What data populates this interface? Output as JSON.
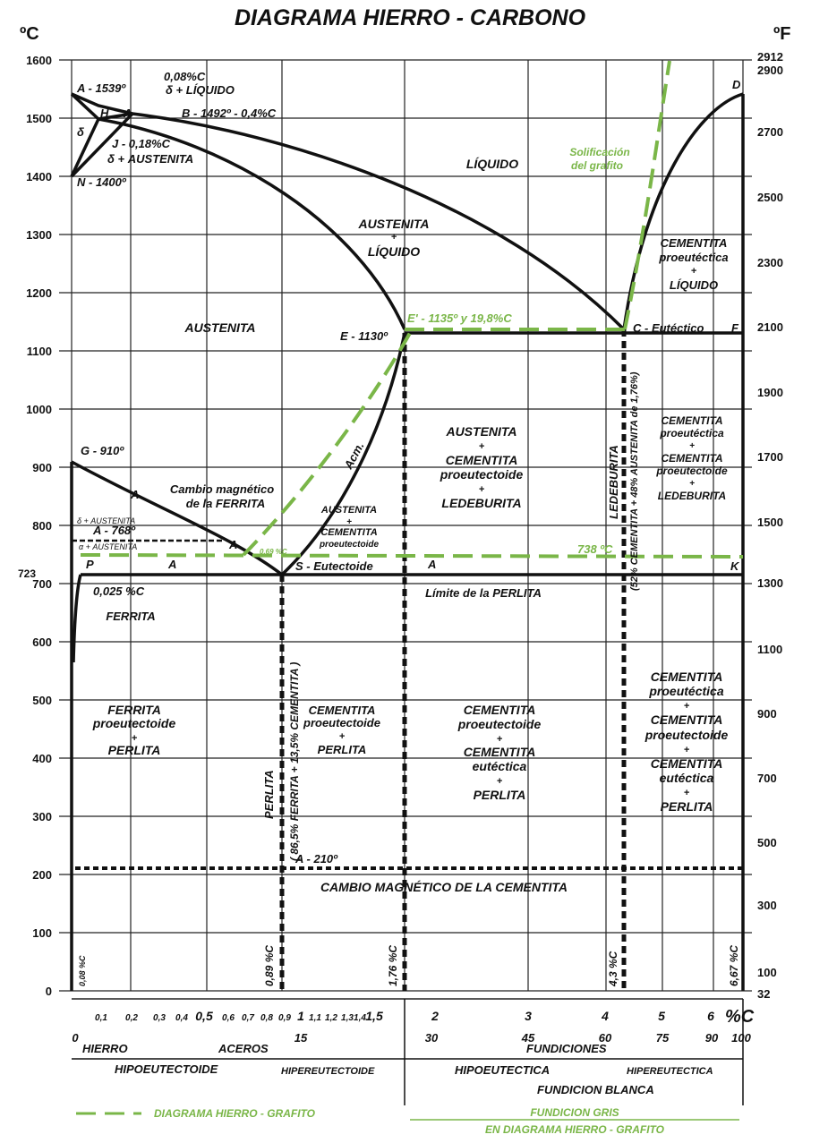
{
  "title": "DIAGRAMA HIERRO - CARBONO",
  "axes": {
    "left_unit": "ºC",
    "right_unit": "ºF",
    "x_unit": "%C",
    "left_ticks": [
      "1600",
      "1500",
      "1400",
      "1300",
      "1200",
      "1100",
      "1000",
      "900",
      "800",
      "700",
      "600",
      "500",
      "400",
      "300",
      "200",
      "100",
      "0"
    ],
    "left_723": "723",
    "right_ticks": [
      "2912",
      "2900",
      "2700",
      "2500",
      "2300",
      "2100",
      "1900",
      "1700",
      "1500",
      "1300",
      "1100",
      "900",
      "700",
      "500",
      "300",
      "100",
      "32"
    ],
    "x_ticks_small": [
      "0,1",
      "0,2",
      "0,3",
      "0,4",
      "0,5",
      "0,6",
      "0,7",
      "0,8",
      "0,9",
      "1",
      "1,1",
      "1,2",
      "1,3",
      "1,4",
      "1,5",
      "2",
      "3",
      "4",
      "5",
      "6"
    ],
    "x_ticks_secondary": [
      "0",
      "15",
      "30",
      "45",
      "60",
      "75",
      "90",
      "100"
    ]
  },
  "points": {
    "A": "A - 1539º",
    "B": "B - 1492º - 0,4%C",
    "H": "H",
    "A4": "A",
    "h008": "0,08%C",
    "d_liq": "δ + LÍQUIDO",
    "J": "J - 0,18%C",
    "d_aus": "δ + AUSTENITA",
    "delta": "δ",
    "N": "N - 1400º",
    "E": "E - 1130º",
    "Eprime": "E' - 1135º y 19,8%C",
    "C": "C - Eutéctico",
    "F": "F",
    "D": "D",
    "G": "G - 910º",
    "A3": "A",
    "A2": "A - 768º",
    "A5": "A",
    "A1": "A",
    "A123": "A",
    "P": "P",
    "S": "S - Eutectoide",
    "K": "K",
    "Acm": "Acm.",
    "p025": "0,025 %C",
    "p069": "0,69 %C",
    "t738": "738 ºC",
    "A0": "A - 210º",
    "dA1": "δ + AUSTENITA",
    "dA2": "α + AUSTENITA"
  },
  "regions": {
    "liquido": "LÍQUIDO",
    "solif1": "Solificación",
    "solif2": "del grafito",
    "aus_liq1": "AUSTENITA",
    "aus_liq2": "+",
    "aus_liq3": "LÍQUIDO",
    "austenita": "AUSTENITA",
    "cem_liq1": "CEMENTITA",
    "cem_liq2": "proeutéctica",
    "cem_liq3": "+",
    "cem_liq4": "LÍQUIDO",
    "cambio1": "Cambio magnético",
    "cambio2": "de la FERRITA",
    "aus_cem1": "AUSTENITA",
    "aus_cem2": "+",
    "aus_cem3": "CEMENTITA",
    "aus_cem4": "proeutectoide",
    "aus_led1": "AUSTENITA",
    "aus_led2": "+",
    "aus_led3": "CEMENTITA",
    "aus_led4": "proeutectoide",
    "aus_led5": "+",
    "aus_led6": "LEDEBURITA",
    "cem_led1": "CEMENTITA",
    "cem_led2": "proeutéctica",
    "cem_led3": "+",
    "cem_led4": "CEMENTITA",
    "cem_led5": "proeutectoide",
    "cem_led6": "+",
    "cem_led7": "LEDEBURITA",
    "ledeburita_v": "LEDEBURITA",
    "ledeburita_v2": "(52% CEMENTITA + 48% AUSTENITA de 1,76%)",
    "limite": "Límite de la PERLITA",
    "ferrita": "FERRITA",
    "fer_per1": "FERRITA",
    "fer_per2": "proeutectoide",
    "fer_per3": "+",
    "fer_per4": "PERLITA",
    "perlita_v": "PERLITA",
    "perlita_v2": "( 86,5% FERRITA + 13,5% CEMENTITA )",
    "cem_per1": "CEMENTITA",
    "cem_per2": "proeutectoide",
    "cem_per3": "+",
    "cem_per4": "PERLITA",
    "cem_eut1": "CEMENTITA",
    "cem_eut2": "proeutectoide",
    "cem_eut3": "+",
    "cem_eut4": "CEMENTITA",
    "cem_eut5": "eutéctica",
    "cem_eut6": "+",
    "cem_eut7": "PERLITA",
    "cem_all1": "CEMENTITA",
    "cem_all2": "proeutéctica",
    "cem_all3": "+",
    "cem_all4": "CEMENTITA",
    "cem_all5": "proeutectoide",
    "cem_all6": "+",
    "cem_all7": "CEMENTITA",
    "cem_all8": "eutéctica",
    "cem_all9": "+",
    "cem_all10": "PERLITA",
    "cambio_cem": "CAMBIO MAGNÉTICO DE LA CEMENTITA",
    "v008": "0,08 %C",
    "v089": "0,89 %C",
    "v176": "1,76 %C",
    "v43": "4,3 %C",
    "v667": "6,67 %C"
  },
  "legend_bottom": {
    "hierro": "HIERRO",
    "aceros": "ACEROS",
    "fundiciones": "FUNDICIONES",
    "hipoeutectoide": "HIPOEUTECTOIDE",
    "hipereutectoide": "HIPEREUTECTOIDE",
    "hipoeutectica": "HIPOEUTECTICA",
    "hipereutectica": "HIPEREUTECTICA",
    "fundicion_blanca": "FUNDICION BLANCA",
    "diagrama_grafito": "DIAGRAMA HIERRO - GRAFITO",
    "fundicion_gris1": "FUNDICION GRIS",
    "fundicion_gris2": "EN DIAGRAMA HIERRO - GRAFITO"
  },
  "colors": {
    "line": "#111111",
    "green": "#7ab648"
  }
}
